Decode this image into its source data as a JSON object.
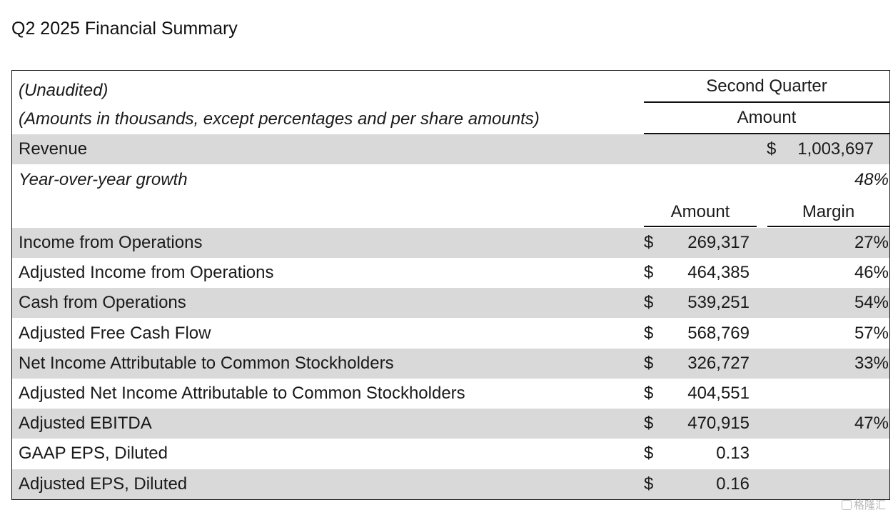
{
  "title": "Q2 2025 Financial Summary",
  "header": {
    "unaudited": "(Unaudited)",
    "amounts_note": "(Amounts in thousands, except percentages and per share amounts)",
    "period": "Second Quarter",
    "amount_label": "Amount"
  },
  "revenue": {
    "label": "Revenue",
    "currency": "$",
    "value": "1,003,697"
  },
  "growth": {
    "label": "Year-over-year growth",
    "value": "48%"
  },
  "subheader": {
    "amount": "Amount",
    "margin": "Margin"
  },
  "rows": [
    {
      "label": "Income from Operations",
      "currency": "$",
      "amount": "269,317",
      "margin": "27%"
    },
    {
      "label": "Adjusted Income from Operations",
      "currency": "$",
      "amount": "464,385",
      "margin": "46%"
    },
    {
      "label": "Cash from Operations",
      "currency": "$",
      "amount": "539,251",
      "margin": "54%"
    },
    {
      "label": "Adjusted Free Cash Flow",
      "currency": "$",
      "amount": "568,769",
      "margin": "57%"
    },
    {
      "label": "Net Income Attributable to Common Stockholders",
      "currency": "$",
      "amount": "326,727",
      "margin": "33%"
    },
    {
      "label": "Adjusted Net Income Attributable to Common Stockholders",
      "currency": "$",
      "amount": "404,551",
      "margin": ""
    },
    {
      "label": "Adjusted EBITDA",
      "currency": "$",
      "amount": "470,915",
      "margin": "47%"
    },
    {
      "label": "GAAP EPS, Diluted",
      "currency": "$",
      "amount": "0.13",
      "margin": ""
    },
    {
      "label": "Adjusted EPS, Diluted",
      "currency": "$",
      "amount": "0.16",
      "margin": ""
    }
  ],
  "watermark": "格隆汇"
}
